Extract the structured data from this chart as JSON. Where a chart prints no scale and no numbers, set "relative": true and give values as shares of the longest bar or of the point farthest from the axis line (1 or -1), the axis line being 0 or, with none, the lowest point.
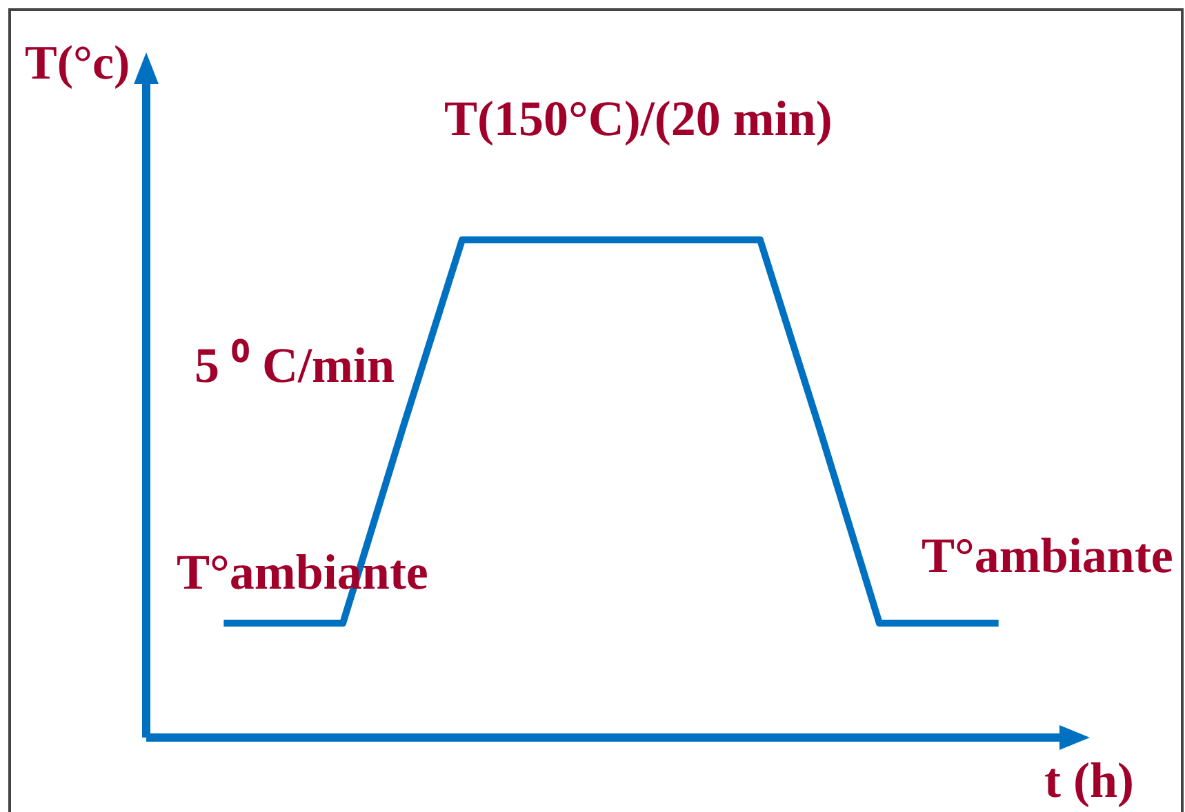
{
  "chart_data": {
    "type": "line",
    "relative": true,
    "categories": [
      null,
      null,
      null,
      null,
      null,
      null,
      null,
      null,
      null,
      null,
      null,
      null,
      null,
      null
    ],
    "series": [
      {
        "color": "#0070c0",
        "values": [
          0.23,
          0.23,
          0.23,
          0.62,
          1,
          1,
          1,
          1,
          1,
          1,
          0.62,
          0.23,
          0.23,
          0.23
        ]
      }
    ],
    "xlabel": "t (h)",
    "ylabel": "T(°c)",
    "annotations": [
      "T(150°C)/(20 min)",
      "5 ⁰ C/min",
      "T°ambiante",
      "T°ambiante"
    ],
    "line_style": "solid"
  }
}
